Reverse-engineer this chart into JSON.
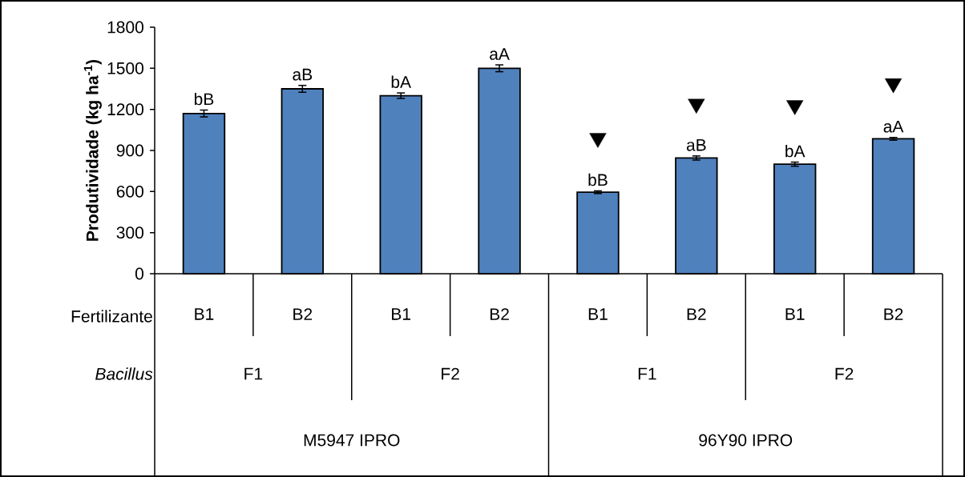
{
  "chart_data": {
    "type": "bar",
    "ylabel": "Produtividade (kg ha$^{-1}$)",
    "categories": [
      "B1",
      "B2",
      "B1",
      "B2",
      "B1",
      "B2",
      "B1",
      "B2"
    ],
    "ylim": [
      0,
      1800
    ],
    "yticks": [
      0,
      300,
      600,
      900,
      1200,
      1500,
      1800
    ],
    "annotations": [
      "Fertilizante",
      "Bacillus",
      "F1",
      "F2",
      "F1",
      "F2",
      "M5947 IPRO",
      "96Y90 IPRO"
    ],
    "series": [
      {
        "color": "#4f81bd",
        "values": [
          1170,
          1350,
          1300,
          1500,
          595,
          845,
          800,
          985
        ],
        "errors": [
          25,
          25,
          20,
          25,
          10,
          15,
          15,
          10
        ],
        "value_labels": [
          "bB",
          "aB",
          "bA",
          "aA",
          "bB",
          "aB",
          "bA",
          "aA"
        ]
      },
      {
        "type": "scatter",
        "color": "#000000",
        "marker": "triangle",
        "values": [
          null,
          null,
          null,
          null,
          990,
          1240,
          1230,
          1390
        ]
      }
    ]
  }
}
